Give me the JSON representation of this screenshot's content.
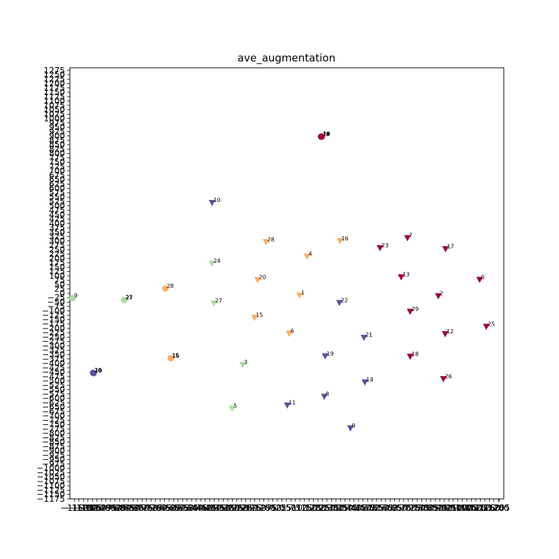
{
  "chart_data": {
    "type": "scatter",
    "title": "ave_augmentation",
    "xlabel": "",
    "ylabel": "",
    "xlim": [
      -1175,
      1230
    ],
    "ylim": [
      -1175,
      1290
    ],
    "x_ticks": [
      -1150,
      -1125,
      -1100,
      -1075,
      -1050,
      -1025,
      -1000,
      -975,
      -950,
      -925,
      -900,
      -875,
      -850,
      -825,
      -800,
      -775,
      -750,
      -725,
      -700,
      -675,
      -650,
      -625,
      -600,
      -575,
      -550,
      -525,
      -500,
      -475,
      -450,
      -425,
      -400,
      -375,
      -350,
      -325,
      -300,
      -275,
      -250,
      -225,
      -200,
      -175,
      -150,
      -125,
      -100,
      -75,
      -50,
      -25,
      0,
      25,
      50,
      75,
      100,
      125,
      150,
      175,
      200,
      225,
      250,
      275,
      300,
      325,
      350,
      375,
      400,
      425,
      450,
      475,
      500,
      525,
      550,
      575,
      600,
      625,
      650,
      675,
      700,
      725,
      750,
      775,
      800,
      825,
      850,
      875,
      900,
      925,
      950,
      975,
      1000,
      1025,
      1050,
      1075,
      1100,
      1125,
      1150,
      1175,
      1200,
      1205
    ],
    "y_ticks": [
      1275,
      1250,
      1225,
      1200,
      1175,
      1150,
      1125,
      1100,
      1075,
      1050,
      1025,
      1000,
      975,
      950,
      925,
      900,
      875,
      850,
      825,
      800,
      775,
      750,
      725,
      700,
      675,
      650,
      625,
      600,
      575,
      550,
      525,
      500,
      475,
      450,
      425,
      400,
      375,
      350,
      325,
      300,
      275,
      250,
      225,
      200,
      175,
      150,
      125,
      100,
      75,
      50,
      25,
      0,
      -25,
      -50,
      -75,
      -100,
      -125,
      -150,
      -175,
      -200,
      -225,
      -250,
      -275,
      -300,
      -325,
      -350,
      -375,
      -400,
      -425,
      -450,
      -475,
      -500,
      -525,
      -550,
      -575,
      -600,
      -625,
      -650,
      -675,
      -700,
      -725,
      -750,
      -775,
      -800,
      -825,
      -850,
      -875,
      -900,
      -925,
      -950,
      -975,
      -1000,
      -1025,
      -1050,
      -1075,
      -1100,
      -1125,
      -1150,
      -1175
    ],
    "series": [
      {
        "marker": "circle",
        "points": [
          {
            "x": 217,
            "y": 896,
            "label": "14",
            "color": "#9e0142"
          },
          {
            "x": 219,
            "y": 896,
            "label": "18",
            "color": "#9e0142"
          },
          {
            "x": 221,
            "y": 896,
            "label": "29",
            "color": "#9e0142"
          },
          {
            "x": 218,
            "y": 897,
            "label": "12",
            "color": "#9e0142"
          },
          {
            "x": -1045,
            "y": -455,
            "label": "10",
            "color": "#5e4fa2"
          },
          {
            "x": -1043,
            "y": -456,
            "label": "19",
            "color": "#5e4fa2"
          },
          {
            "x": -1047,
            "y": -454,
            "label": "26",
            "color": "#5e4fa2"
          },
          {
            "x": -617,
            "y": -370,
            "label": "15",
            "color": "#fdae61"
          },
          {
            "x": -615,
            "y": -371,
            "label": "16",
            "color": "#fdae61"
          },
          {
            "x": -646,
            "y": 28,
            "label": "28",
            "color": "#fdae61"
          },
          {
            "x": -875,
            "y": -37,
            "label": "21",
            "color": "#abdda4"
          },
          {
            "x": -873,
            "y": -38,
            "label": "27",
            "color": "#abdda4"
          },
          {
            "x": -1160,
            "y": -27,
            "label": "9",
            "color": "#abdda4"
          }
        ]
      },
      {
        "marker": "triangle-down",
        "points": [
          {
            "x": -387,
            "y": 518,
            "label": "10",
            "color": "#5e4fa2"
          },
          {
            "x": 319,
            "y": -54,
            "label": "22",
            "color": "#5e4fa2"
          },
          {
            "x": 455,
            "y": -253,
            "label": "21",
            "color": "#5e4fa2"
          },
          {
            "x": 240,
            "y": -359,
            "label": "19",
            "color": "#5e4fa2"
          },
          {
            "x": 460,
            "y": -508,
            "label": "14",
            "color": "#5e4fa2"
          },
          {
            "x": 235,
            "y": -590,
            "label": "8",
            "color": "#5e4fa2"
          },
          {
            "x": 30,
            "y": -640,
            "label": "11",
            "color": "#5e4fa2"
          },
          {
            "x": 380,
            "y": -771,
            "label": "9",
            "color": "#5e4fa2"
          },
          {
            "x": -88,
            "y": 294,
            "label": "28",
            "color": "#fdae61"
          },
          {
            "x": 322,
            "y": 300,
            "label": "16",
            "color": "#fdae61"
          },
          {
            "x": 140,
            "y": 211,
            "label": "4",
            "color": "#fdae61"
          },
          {
            "x": -135,
            "y": 77,
            "label": "20",
            "color": "#fdae61"
          },
          {
            "x": 98,
            "y": -11,
            "label": "1",
            "color": "#fdae61"
          },
          {
            "x": -152,
            "y": -139,
            "label": "15",
            "color": "#fdae61"
          },
          {
            "x": 40,
            "y": -230,
            "label": "6",
            "color": "#fdae61"
          },
          {
            "x": -387,
            "y": 171,
            "label": "24",
            "color": "#abdda4"
          },
          {
            "x": -378,
            "y": -56,
            "label": "27",
            "color": "#abdda4"
          },
          {
            "x": -218,
            "y": -408,
            "label": "3",
            "color": "#abdda4"
          },
          {
            "x": -276,
            "y": -658,
            "label": "5",
            "color": "#abdda4"
          },
          {
            "x": 696,
            "y": 317,
            "label": "7",
            "color": "#9e0142"
          },
          {
            "x": 544,
            "y": 260,
            "label": "23",
            "color": "#9e0142"
          },
          {
            "x": 907,
            "y": 254,
            "label": "17",
            "color": "#9e0142"
          },
          {
            "x": 661,
            "y": 93,
            "label": "13",
            "color": "#9e0142"
          },
          {
            "x": 1096,
            "y": 78,
            "label": "0",
            "color": "#9e0142"
          },
          {
            "x": 867,
            "y": -15,
            "label": "2",
            "color": "#9e0142"
          },
          {
            "x": 711,
            "y": -104,
            "label": "29",
            "color": "#9e0142"
          },
          {
            "x": 1133,
            "y": -190,
            "label": "25",
            "color": "#9e0142"
          },
          {
            "x": 905,
            "y": -232,
            "label": "12",
            "color": "#9e0142"
          },
          {
            "x": 711,
            "y": -361,
            "label": "18",
            "color": "#9e0142"
          },
          {
            "x": 895,
            "y": -489,
            "label": "26",
            "color": "#9e0142"
          }
        ]
      }
    ]
  }
}
